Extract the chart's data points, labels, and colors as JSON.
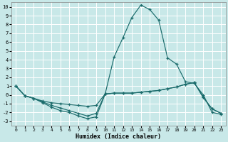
{
  "xlabel": "Humidex (Indice chaleur)",
  "background_color": "#c8e8e8",
  "grid_color": "#b0d4d4",
  "line_color": "#1a6b6b",
  "xlim": [
    -0.5,
    23.5
  ],
  "ylim": [
    -3.5,
    10.5
  ],
  "xticks": [
    0,
    1,
    2,
    3,
    4,
    5,
    6,
    7,
    8,
    9,
    10,
    11,
    12,
    13,
    14,
    15,
    16,
    17,
    18,
    19,
    20,
    21,
    22,
    23
  ],
  "yticks": [
    -3,
    -2,
    -1,
    0,
    1,
    2,
    3,
    4,
    5,
    6,
    7,
    8,
    9,
    10
  ],
  "series": [
    {
      "x": [
        0,
        1,
        2,
        3,
        4,
        5,
        6,
        7,
        8,
        9,
        10,
        11,
        12,
        13,
        14,
        15,
        16,
        17,
        18,
        19,
        20,
        21,
        22,
        23
      ],
      "y": [
        1,
        -0.1,
        -0.4,
        -0.8,
        -1.2,
        -1.5,
        -1.8,
        -2.1,
        -2.4,
        -2.1,
        0.1,
        4.3,
        6.5,
        8.8,
        10.2,
        9.7,
        8.5,
        4.2,
        3.5,
        1.5,
        1.3,
        0.0,
        -2.0,
        -2.2
      ]
    },
    {
      "x": [
        0,
        1,
        2,
        3,
        4,
        5,
        6,
        7,
        8,
        9,
        10,
        11,
        12,
        13,
        14,
        15,
        16,
        17,
        18,
        19,
        20,
        21,
        22,
        23
      ],
      "y": [
        1,
        -0.1,
        -0.4,
        -0.7,
        -0.9,
        -1.0,
        -1.1,
        -1.2,
        -1.3,
        -1.2,
        0.1,
        0.2,
        0.2,
        0.2,
        0.3,
        0.4,
        0.5,
        0.7,
        0.9,
        1.2,
        1.4,
        -0.3,
        -1.6,
        -2.1
      ]
    },
    {
      "x": [
        0,
        1,
        2,
        3,
        4,
        5,
        6,
        7,
        8,
        9,
        10,
        11,
        12,
        13,
        14,
        15,
        16,
        17,
        18,
        19,
        20,
        21,
        22,
        23
      ],
      "y": [
        1,
        -0.1,
        -0.4,
        -0.9,
        -1.4,
        -1.8,
        -2.0,
        -2.4,
        -2.7,
        -2.5,
        0.1,
        0.2,
        0.2,
        0.2,
        0.3,
        0.4,
        0.5,
        0.7,
        0.9,
        1.2,
        1.4,
        -0.3,
        -1.6,
        -2.1
      ]
    }
  ]
}
